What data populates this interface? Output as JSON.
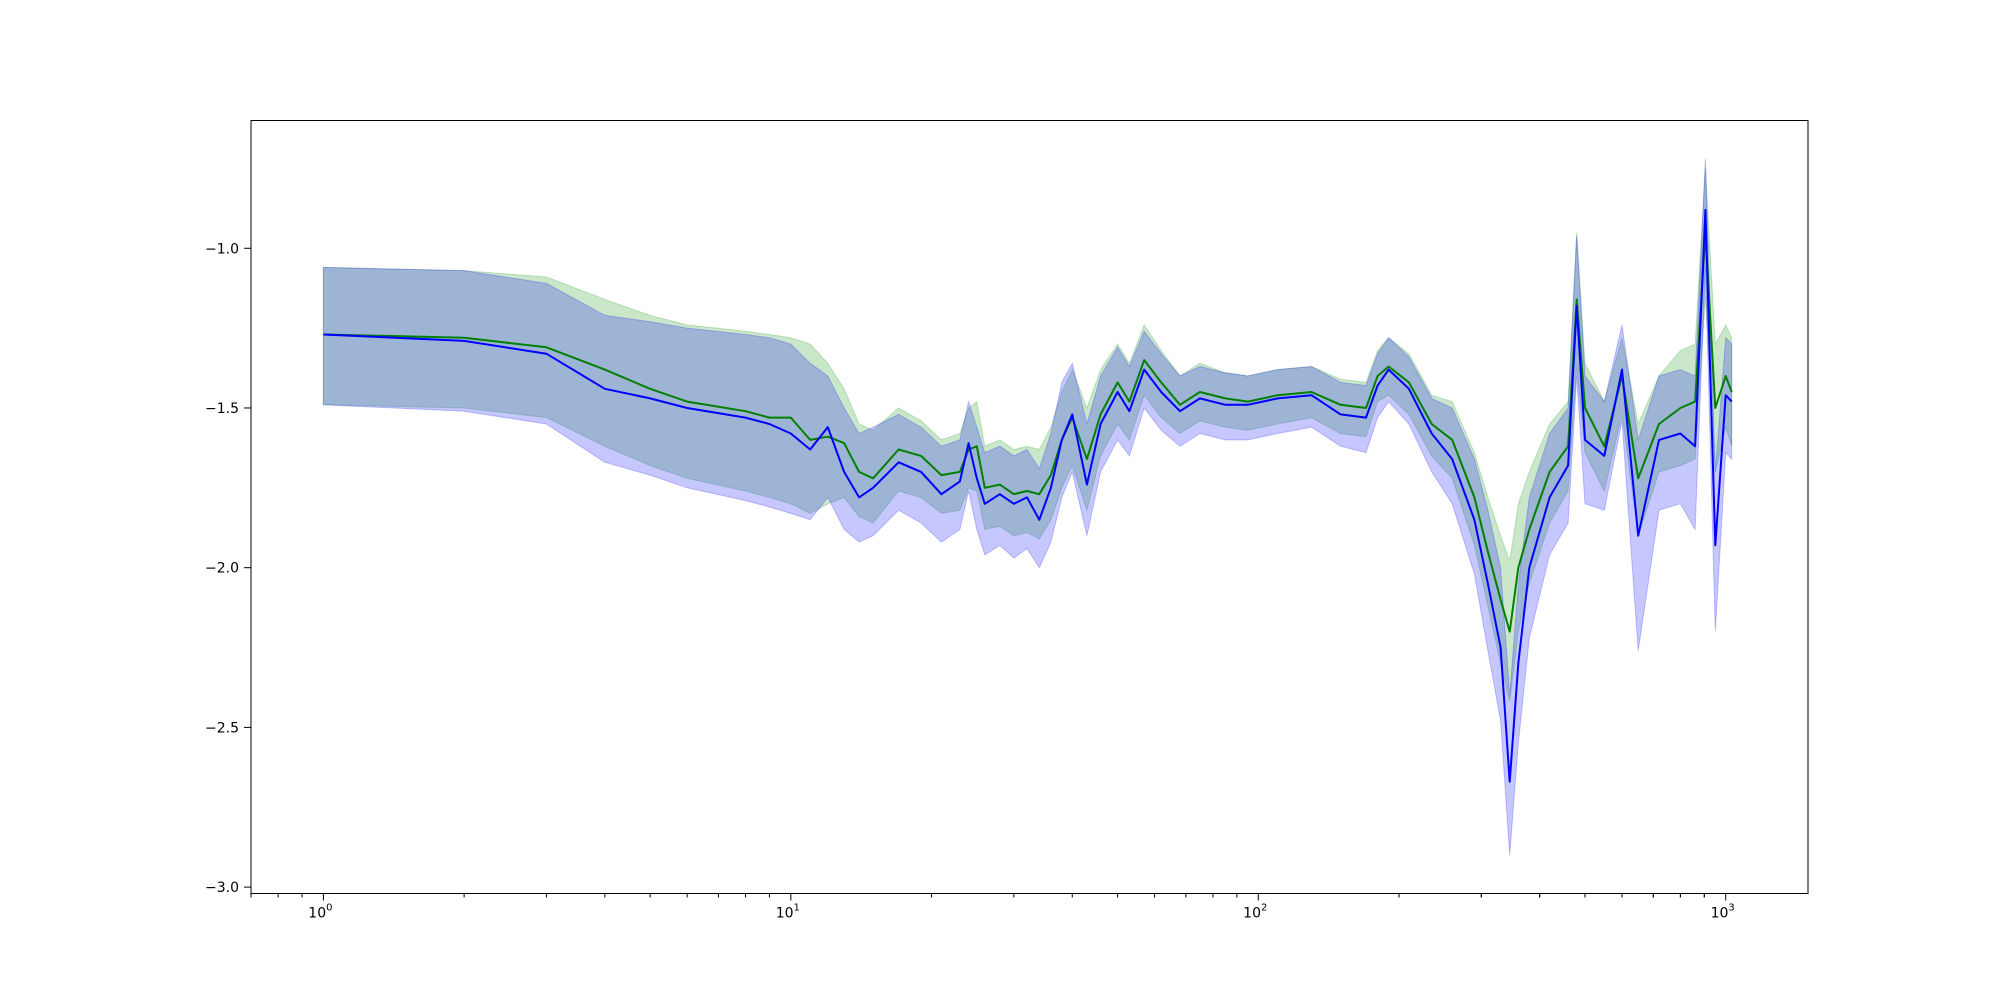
{
  "chart_data": {
    "type": "line",
    "title": "",
    "xlabel": "",
    "ylabel": "",
    "x_scale": "log",
    "xlim": [
      0.7,
      1500
    ],
    "ylim": [
      -3.02,
      -0.6
    ],
    "grid": false,
    "legend": "none",
    "x_ticks": [
      {
        "value": 1,
        "base": "10",
        "exp": "0"
      },
      {
        "value": 10,
        "base": "10",
        "exp": "1"
      },
      {
        "value": 100,
        "base": "10",
        "exp": "2"
      },
      {
        "value": 1000,
        "base": "10",
        "exp": "3"
      }
    ],
    "y_ticks": [
      {
        "value": -1.0,
        "label": "−1.0"
      },
      {
        "value": -1.5,
        "label": "−1.5"
      },
      {
        "value": -2.0,
        "label": "−2.0"
      },
      {
        "value": -2.5,
        "label": "−2.5"
      },
      {
        "value": -3.0,
        "label": "−3.0"
      }
    ],
    "series": [
      {
        "color": "#008000",
        "band_color": "#2ca02c",
        "band_opacity": 0.25,
        "points": [
          [
            1,
            -1.27,
            -1.06,
            -1.49
          ],
          [
            2,
            -1.28,
            -1.07,
            -1.5
          ],
          [
            3,
            -1.31,
            -1.09,
            -1.53
          ],
          [
            4,
            -1.38,
            -1.16,
            -1.62
          ],
          [
            5,
            -1.44,
            -1.21,
            -1.68
          ],
          [
            6,
            -1.48,
            -1.24,
            -1.72
          ],
          [
            8,
            -1.51,
            -1.26,
            -1.76
          ],
          [
            9,
            -1.53,
            -1.27,
            -1.78
          ],
          [
            10,
            -1.53,
            -1.28,
            -1.8
          ],
          [
            11,
            -1.6,
            -1.3,
            -1.83
          ],
          [
            12,
            -1.59,
            -1.36,
            -1.8
          ],
          [
            13,
            -1.61,
            -1.44,
            -1.78
          ],
          [
            14,
            -1.7,
            -1.55,
            -1.84
          ],
          [
            15,
            -1.72,
            -1.57,
            -1.86
          ],
          [
            17,
            -1.63,
            -1.5,
            -1.76
          ],
          [
            19,
            -1.65,
            -1.54,
            -1.78
          ],
          [
            21,
            -1.71,
            -1.6,
            -1.83
          ],
          [
            23,
            -1.7,
            -1.58,
            -1.82
          ],
          [
            24,
            -1.63,
            -1.5,
            -1.75
          ],
          [
            25,
            -1.62,
            -1.48,
            -1.76
          ],
          [
            26,
            -1.75,
            -1.62,
            -1.88
          ],
          [
            28,
            -1.74,
            -1.6,
            -1.87
          ],
          [
            30,
            -1.77,
            -1.63,
            -1.9
          ],
          [
            32,
            -1.76,
            -1.62,
            -1.89
          ],
          [
            34,
            -1.77,
            -1.63,
            -1.91
          ],
          [
            36,
            -1.71,
            -1.56,
            -1.85
          ],
          [
            38,
            -1.6,
            -1.45,
            -1.75
          ],
          [
            40,
            -1.53,
            -1.38,
            -1.68
          ],
          [
            43,
            -1.66,
            -1.5,
            -1.82
          ],
          [
            46,
            -1.52,
            -1.38,
            -1.65
          ],
          [
            50,
            -1.42,
            -1.3,
            -1.55
          ],
          [
            53,
            -1.48,
            -1.36,
            -1.6
          ],
          [
            57,
            -1.35,
            -1.24,
            -1.46
          ],
          [
            62,
            -1.42,
            -1.32,
            -1.53
          ],
          [
            68,
            -1.49,
            -1.4,
            -1.58
          ],
          [
            75,
            -1.45,
            -1.36,
            -1.54
          ],
          [
            85,
            -1.47,
            -1.39,
            -1.56
          ],
          [
            95,
            -1.48,
            -1.4,
            -1.57
          ],
          [
            110,
            -1.46,
            -1.38,
            -1.55
          ],
          [
            130,
            -1.45,
            -1.37,
            -1.53
          ],
          [
            150,
            -1.49,
            -1.41,
            -1.58
          ],
          [
            170,
            -1.5,
            -1.42,
            -1.59
          ],
          [
            180,
            -1.4,
            -1.32,
            -1.48
          ],
          [
            190,
            -1.37,
            -1.28,
            -1.46
          ],
          [
            210,
            -1.42,
            -1.33,
            -1.52
          ],
          [
            235,
            -1.55,
            -1.46,
            -1.65
          ],
          [
            260,
            -1.6,
            -1.48,
            -1.72
          ],
          [
            290,
            -1.78,
            -1.64,
            -1.93
          ],
          [
            310,
            -1.95,
            -1.78,
            -2.12
          ],
          [
            330,
            -2.1,
            -1.9,
            -2.3
          ],
          [
            345,
            -2.2,
            -1.98,
            -2.42
          ],
          [
            360,
            -2.0,
            -1.8,
            -2.2
          ],
          [
            380,
            -1.88,
            -1.7,
            -2.05
          ],
          [
            420,
            -1.7,
            -1.55,
            -1.86
          ],
          [
            460,
            -1.62,
            -1.48,
            -1.76
          ],
          [
            480,
            -1.16,
            -0.95,
            -1.37
          ],
          [
            500,
            -1.5,
            -1.36,
            -1.64
          ],
          [
            550,
            -1.62,
            -1.48,
            -1.76
          ],
          [
            600,
            -1.4,
            -1.28,
            -1.52
          ],
          [
            650,
            -1.72,
            -1.55,
            -1.9
          ],
          [
            720,
            -1.55,
            -1.4,
            -1.7
          ],
          [
            800,
            -1.5,
            -1.32,
            -1.68
          ],
          [
            860,
            -1.48,
            -1.3,
            -1.66
          ],
          [
            905,
            -0.95,
            -0.75,
            -1.15
          ],
          [
            950,
            -1.5,
            -1.3,
            -1.7
          ],
          [
            1000,
            -1.4,
            -1.24,
            -1.56
          ],
          [
            1030,
            -1.45,
            -1.28,
            -1.62
          ]
        ]
      },
      {
        "color": "#0000ff",
        "band_color": "#0000ff",
        "band_opacity": 0.22,
        "points": [
          [
            1,
            -1.27,
            -1.06,
            -1.49
          ],
          [
            2,
            -1.29,
            -1.07,
            -1.51
          ],
          [
            3,
            -1.33,
            -1.11,
            -1.55
          ],
          [
            4,
            -1.44,
            -1.21,
            -1.67
          ],
          [
            5,
            -1.47,
            -1.23,
            -1.71
          ],
          [
            6,
            -1.5,
            -1.25,
            -1.75
          ],
          [
            8,
            -1.53,
            -1.27,
            -1.79
          ],
          [
            9,
            -1.55,
            -1.28,
            -1.81
          ],
          [
            10,
            -1.58,
            -1.3,
            -1.83
          ],
          [
            11,
            -1.63,
            -1.36,
            -1.85
          ],
          [
            12,
            -1.56,
            -1.4,
            -1.78
          ],
          [
            13,
            -1.7,
            -1.5,
            -1.88
          ],
          [
            14,
            -1.78,
            -1.58,
            -1.92
          ],
          [
            15,
            -1.75,
            -1.56,
            -1.9
          ],
          [
            17,
            -1.67,
            -1.52,
            -1.82
          ],
          [
            19,
            -1.7,
            -1.56,
            -1.86
          ],
          [
            21,
            -1.77,
            -1.62,
            -1.92
          ],
          [
            23,
            -1.73,
            -1.6,
            -1.88
          ],
          [
            24,
            -1.61,
            -1.48,
            -1.76
          ],
          [
            25,
            -1.72,
            -1.56,
            -1.88
          ],
          [
            26,
            -1.8,
            -1.64,
            -1.96
          ],
          [
            28,
            -1.77,
            -1.62,
            -1.93
          ],
          [
            30,
            -1.8,
            -1.65,
            -1.97
          ],
          [
            32,
            -1.78,
            -1.63,
            -1.94
          ],
          [
            34,
            -1.85,
            -1.69,
            -2.0
          ],
          [
            36,
            -1.75,
            -1.58,
            -1.92
          ],
          [
            38,
            -1.6,
            -1.42,
            -1.78
          ],
          [
            40,
            -1.52,
            -1.36,
            -1.7
          ],
          [
            43,
            -1.74,
            -1.55,
            -1.9
          ],
          [
            46,
            -1.55,
            -1.4,
            -1.7
          ],
          [
            50,
            -1.45,
            -1.31,
            -1.6
          ],
          [
            53,
            -1.51,
            -1.37,
            -1.65
          ],
          [
            57,
            -1.38,
            -1.26,
            -1.5
          ],
          [
            62,
            -1.45,
            -1.33,
            -1.57
          ],
          [
            68,
            -1.51,
            -1.4,
            -1.62
          ],
          [
            75,
            -1.47,
            -1.37,
            -1.58
          ],
          [
            85,
            -1.49,
            -1.39,
            -1.6
          ],
          [
            95,
            -1.49,
            -1.4,
            -1.6
          ],
          [
            110,
            -1.47,
            -1.38,
            -1.58
          ],
          [
            130,
            -1.46,
            -1.37,
            -1.56
          ],
          [
            150,
            -1.52,
            -1.42,
            -1.62
          ],
          [
            170,
            -1.53,
            -1.43,
            -1.64
          ],
          [
            180,
            -1.43,
            -1.33,
            -1.53
          ],
          [
            190,
            -1.38,
            -1.28,
            -1.48
          ],
          [
            210,
            -1.44,
            -1.34,
            -1.55
          ],
          [
            235,
            -1.58,
            -1.47,
            -1.7
          ],
          [
            260,
            -1.66,
            -1.5,
            -1.8
          ],
          [
            290,
            -1.85,
            -1.66,
            -2.02
          ],
          [
            310,
            -2.05,
            -1.82,
            -2.26
          ],
          [
            330,
            -2.25,
            -2.0,
            -2.48
          ],
          [
            345,
            -2.67,
            -2.4,
            -2.9
          ],
          [
            360,
            -2.3,
            -2.05,
            -2.55
          ],
          [
            380,
            -2.0,
            -1.78,
            -2.22
          ],
          [
            420,
            -1.78,
            -1.58,
            -1.96
          ],
          [
            460,
            -1.68,
            -1.5,
            -1.86
          ],
          [
            480,
            -1.18,
            -0.96,
            -1.4
          ],
          [
            500,
            -1.6,
            -1.4,
            -1.8
          ],
          [
            550,
            -1.65,
            -1.48,
            -1.82
          ],
          [
            600,
            -1.38,
            -1.24,
            -1.54
          ],
          [
            650,
            -1.9,
            -1.6,
            -2.26
          ],
          [
            720,
            -1.6,
            -1.4,
            -1.82
          ],
          [
            800,
            -1.58,
            -1.38,
            -1.8
          ],
          [
            860,
            -1.62,
            -1.4,
            -1.88
          ],
          [
            905,
            -0.88,
            -0.72,
            -1.06
          ],
          [
            950,
            -1.93,
            -1.7,
            -2.2
          ],
          [
            1000,
            -1.46,
            -1.28,
            -1.64
          ],
          [
            1030,
            -1.48,
            -1.3,
            -1.66
          ]
        ]
      }
    ]
  }
}
